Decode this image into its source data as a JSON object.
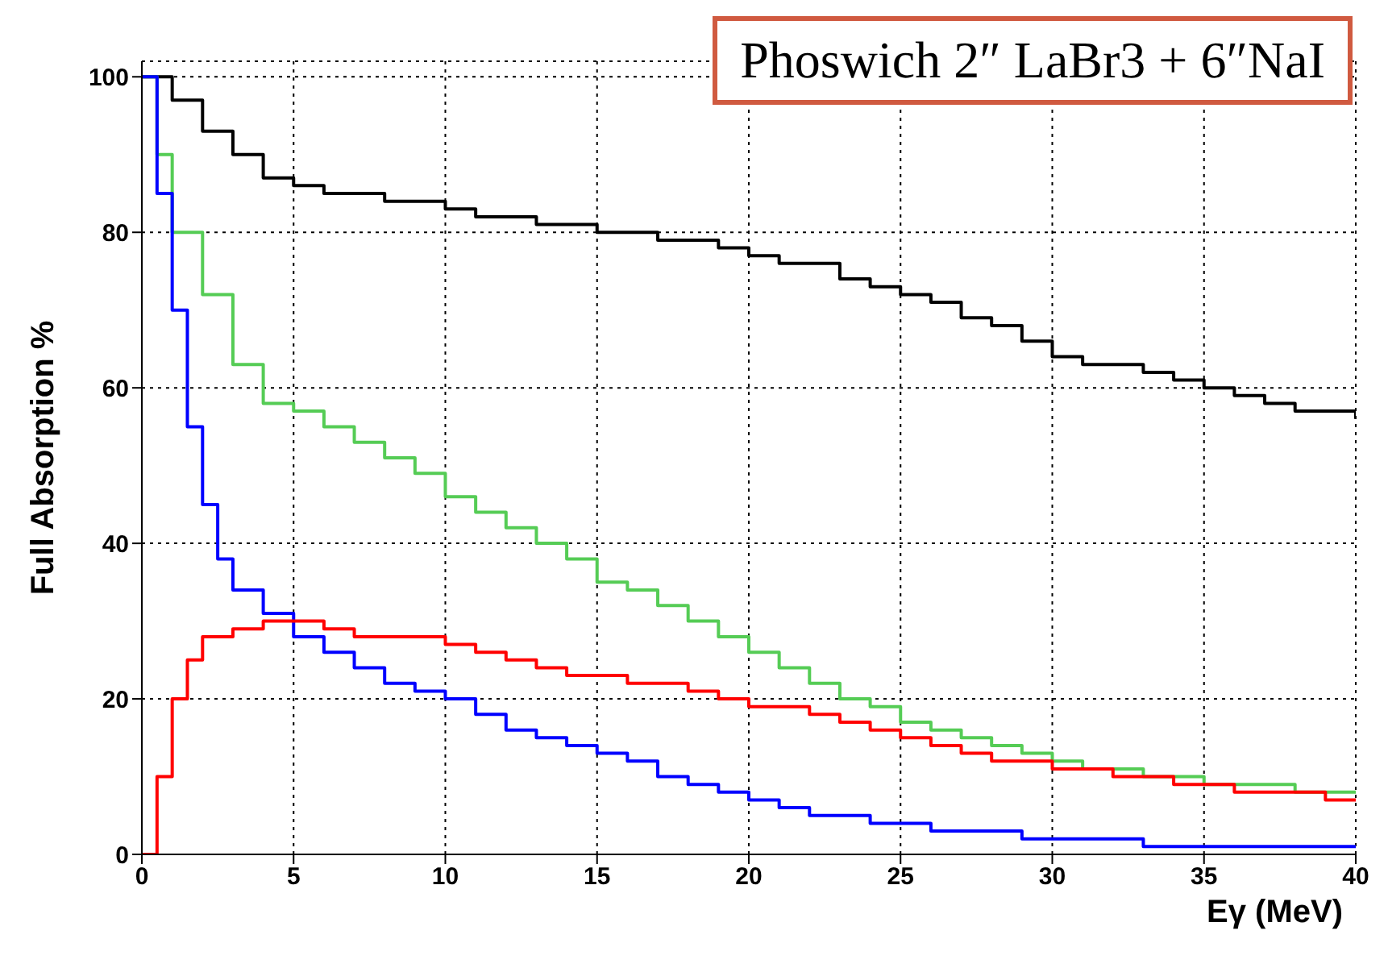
{
  "chart_data": {
    "type": "step",
    "title": "Phoswich 2″ LaBr3 + 6″NaI",
    "xlabel": "Eγ (MeV)",
    "ylabel": "Full Absorption %",
    "xlim": [
      0,
      40
    ],
    "ylim": [
      0,
      102
    ],
    "xticks": [
      0,
      5,
      10,
      15,
      20,
      25,
      30,
      35,
      40
    ],
    "yticks": [
      0,
      20,
      40,
      60,
      80,
      100
    ],
    "grid": true,
    "line_style": "solid",
    "marker": "none",
    "series": [
      {
        "color": "#000000",
        "x": [
          0,
          1,
          2,
          3,
          4,
          5,
          6,
          7,
          8,
          9,
          10,
          11,
          12,
          13,
          14,
          15,
          16,
          17,
          18,
          19,
          20,
          21,
          22,
          23,
          24,
          25,
          26,
          27,
          28,
          29,
          30,
          31,
          32,
          33,
          34,
          35,
          36,
          37,
          38,
          39,
          40
        ],
        "values": [
          100,
          97,
          93,
          90,
          87,
          86,
          85,
          85,
          84,
          84,
          83,
          82,
          82,
          81,
          81,
          80,
          80,
          79,
          79,
          78,
          77,
          76,
          76,
          74,
          73,
          72,
          71,
          69,
          68,
          66,
          64,
          63,
          63,
          62,
          61,
          60,
          59,
          58,
          57,
          57,
          56
        ]
      },
      {
        "color": "#55cc55",
        "x": [
          0,
          0.5,
          1,
          2,
          3,
          4,
          5,
          6,
          7,
          8,
          9,
          10,
          11,
          12,
          13,
          14,
          15,
          16,
          17,
          18,
          19,
          20,
          21,
          22,
          23,
          24,
          25,
          26,
          27,
          28,
          29,
          30,
          31,
          32,
          33,
          34,
          35,
          36,
          37,
          38,
          39,
          40
        ],
        "values": [
          100,
          90,
          80,
          72,
          63,
          58,
          57,
          55,
          53,
          51,
          49,
          46,
          44,
          42,
          40,
          38,
          35,
          34,
          32,
          30,
          28,
          26,
          24,
          22,
          20,
          19,
          17,
          16,
          15,
          14,
          13,
          12,
          11,
          11,
          10,
          10,
          9,
          9,
          9,
          8,
          8,
          8
        ]
      },
      {
        "color": "#0000ff",
        "x": [
          0,
          0.5,
          1,
          1.5,
          2,
          2.5,
          3,
          4,
          5,
          6,
          7,
          8,
          9,
          10,
          11,
          12,
          13,
          14,
          15,
          16,
          17,
          18,
          19,
          20,
          21,
          22,
          23,
          24,
          25,
          26,
          27,
          28,
          29,
          30,
          31,
          32,
          33,
          34,
          35,
          36,
          37,
          38,
          39,
          40
        ],
        "values": [
          100,
          85,
          70,
          55,
          45,
          38,
          34,
          31,
          28,
          26,
          24,
          22,
          21,
          20,
          18,
          16,
          15,
          14,
          13,
          12,
          10,
          9,
          8,
          7,
          6,
          5,
          5,
          4,
          4,
          3,
          3,
          3,
          2,
          2,
          2,
          2,
          1,
          1,
          1,
          1,
          1,
          1,
          1,
          1
        ]
      },
      {
        "color": "#ff0000",
        "x": [
          0,
          0.5,
          1,
          1.5,
          2,
          3,
          4,
          5,
          6,
          7,
          8,
          9,
          10,
          11,
          12,
          13,
          14,
          15,
          16,
          17,
          18,
          19,
          20,
          21,
          22,
          23,
          24,
          25,
          26,
          27,
          28,
          29,
          30,
          31,
          32,
          33,
          34,
          35,
          36,
          37,
          38,
          39,
          40
        ],
        "values": [
          0,
          10,
          20,
          25,
          28,
          29,
          30,
          30,
          29,
          28,
          28,
          28,
          27,
          26,
          25,
          24,
          23,
          23,
          22,
          22,
          21,
          20,
          19,
          19,
          18,
          17,
          16,
          15,
          14,
          13,
          12,
          12,
          11,
          11,
          10,
          10,
          9,
          9,
          8,
          8,
          8,
          7,
          7
        ]
      }
    ]
  }
}
